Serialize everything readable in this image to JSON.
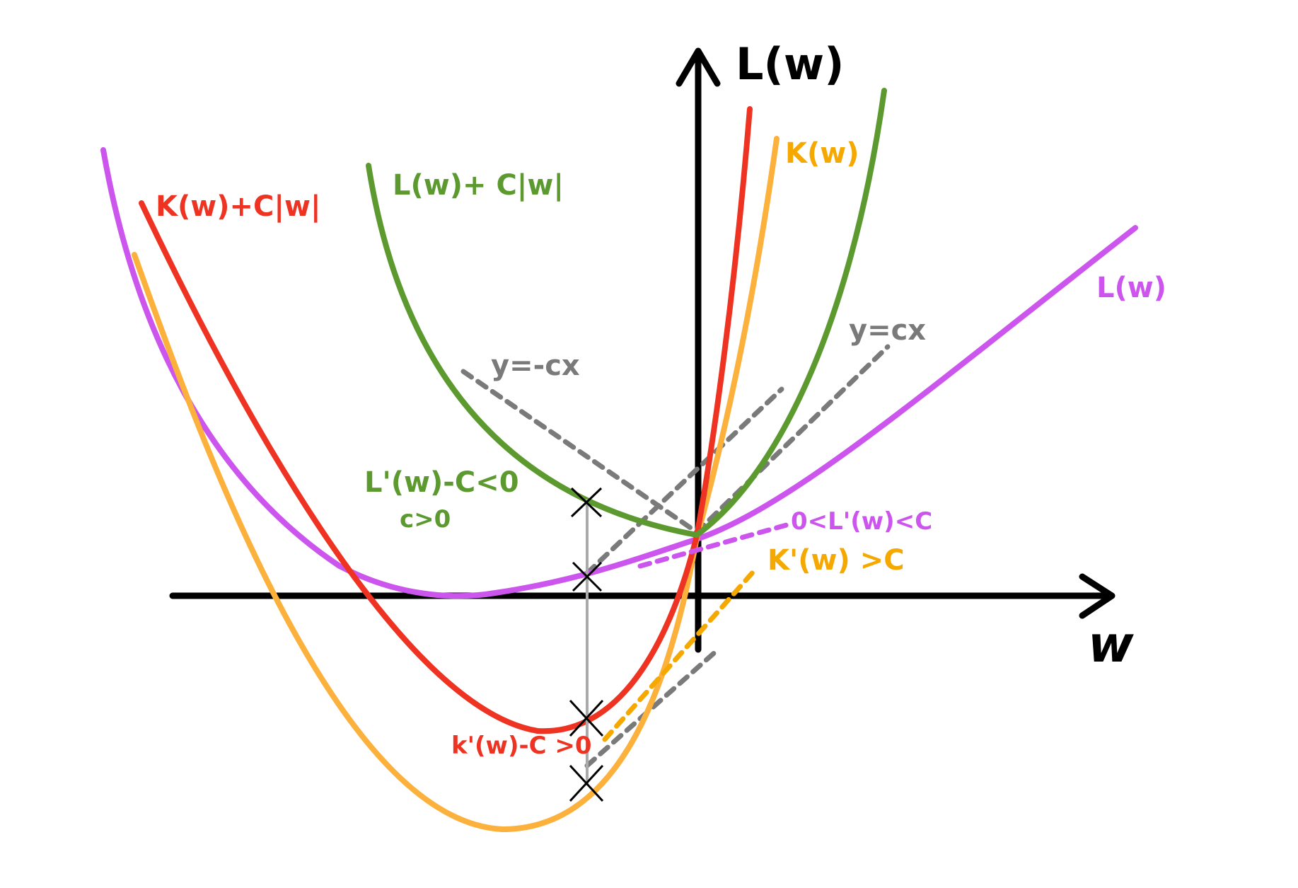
{
  "colors": {
    "axis": "#000000",
    "L": "#cc55ee",
    "K": "#fbb13c",
    "K_reg": "#ee3322",
    "L_reg": "#5c9a30",
    "guide": "#7a7a7a",
    "tangent_L": "#cc55ee",
    "tangent_K": "#f5a800",
    "vertical": "#aaaaaa"
  },
  "axes": {
    "y_label": "L(w)",
    "x_label": "w"
  },
  "curves": {
    "L_label": "L(w)",
    "K_label": "K(w)",
    "K_reg_label": "K(w)+C|w|",
    "L_reg_label": "L(w)+ C|w|"
  },
  "annotations": {
    "y_neg_cx": "y=-cx",
    "y_cx": "y=cx",
    "L_reg_cond": "L'(w)-C<0",
    "c_pos": "c>0",
    "L_cond": "0<L'(w)<C",
    "K_cond": "K'(w) >C",
    "K_reg_cond": "k'(w)-C >0"
  }
}
